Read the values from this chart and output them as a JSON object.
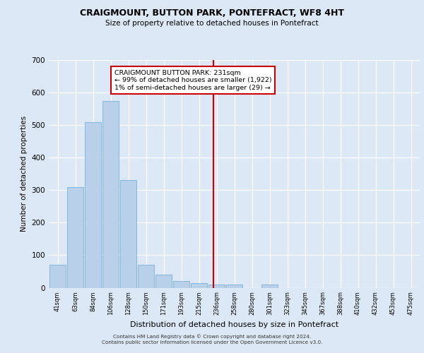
{
  "title": "CRAIGMOUNT, BUTTON PARK, PONTEFRACT, WF8 4HT",
  "subtitle": "Size of property relative to detached houses in Pontefract",
  "xlabel": "Distribution of detached houses by size in Pontefract",
  "ylabel": "Number of detached properties",
  "bar_labels": [
    "41sqm",
    "63sqm",
    "84sqm",
    "106sqm",
    "128sqm",
    "150sqm",
    "171sqm",
    "193sqm",
    "215sqm",
    "236sqm",
    "258sqm",
    "280sqm",
    "301sqm",
    "323sqm",
    "345sqm",
    "367sqm",
    "388sqm",
    "410sqm",
    "432sqm",
    "453sqm",
    "475sqm"
  ],
  "bar_values": [
    70,
    310,
    510,
    575,
    330,
    70,
    40,
    20,
    15,
    10,
    10,
    0,
    10,
    0,
    0,
    0,
    0,
    0,
    0,
    0,
    0
  ],
  "bar_color": "#b8d0ea",
  "bar_edge_color": "#6aaad4",
  "background_color": "#dce8f5",
  "grid_color": "#ffffff",
  "vline_x": 8.82,
  "vline_color": "#cc0000",
  "annotation_text": "CRAIGMOUNT BUTTON PARK: 231sqm\n← 99% of detached houses are smaller (1,922)\n1% of semi-detached houses are larger (29) →",
  "annotation_box_color": "#ffffff",
  "annotation_box_edge": "#cc0000",
  "ylim": [
    0,
    700
  ],
  "yticks": [
    0,
    100,
    200,
    300,
    400,
    500,
    600,
    700
  ],
  "footer_line1": "Contains HM Land Registry data © Crown copyright and database right 2024.",
  "footer_line2": "Contains public sector information licensed under the Open Government Licence v3.0."
}
